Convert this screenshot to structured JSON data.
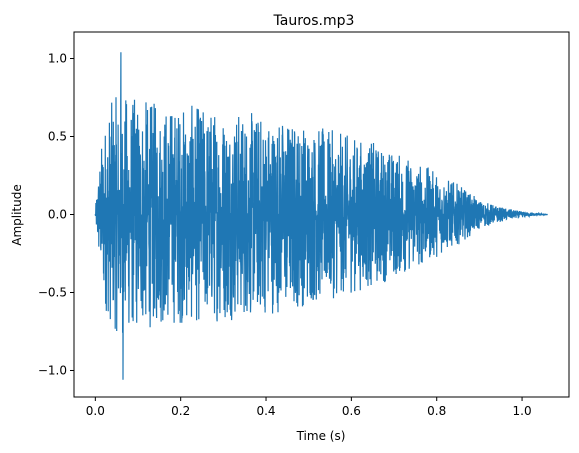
{
  "chart_data": {
    "type": "line",
    "title": "Tauros.mp3",
    "xlabel": "Time (s)",
    "ylabel": "Amplitude",
    "xlim": [
      -0.05,
      1.11
    ],
    "ylim": [
      -1.17,
      1.17
    ],
    "xticks": [
      0.0,
      0.2,
      0.4,
      0.6,
      0.8,
      1.0
    ],
    "yticks": [
      -1.0,
      -0.5,
      0.0,
      0.5,
      1.0
    ],
    "xtick_labels": [
      "0.0",
      "0.2",
      "0.4",
      "0.6",
      "0.8",
      "1.0"
    ],
    "ytick_labels": [
      "−1.0",
      "−0.5",
      "0.0",
      "0.5",
      "1.0"
    ],
    "grid": false,
    "legend": "none",
    "color": "#1f77b4",
    "series": [
      {
        "x_range": [
          0.0,
          1.06
        ],
        "envelope": [
          {
            "x": 0.0,
            "amp": 0.03
          },
          {
            "x": 0.005,
            "amp": 0.3
          },
          {
            "x": 0.02,
            "amp": 0.75
          },
          {
            "x": 0.04,
            "amp": 0.95
          },
          {
            "x": 0.06,
            "amp": 1.0
          },
          {
            "x": 0.15,
            "amp": 0.92
          },
          {
            "x": 0.3,
            "amp": 0.88
          },
          {
            "x": 0.45,
            "amp": 0.8
          },
          {
            "x": 0.55,
            "amp": 0.7
          },
          {
            "x": 0.65,
            "amp": 0.6
          },
          {
            "x": 0.75,
            "amp": 0.45
          },
          {
            "x": 0.85,
            "amp": 0.25
          },
          {
            "x": 0.9,
            "amp": 0.12
          },
          {
            "x": 0.95,
            "amp": 0.06
          },
          {
            "x": 1.0,
            "amp": 0.025
          },
          {
            "x": 1.06,
            "amp": 0.0
          }
        ],
        "peak_max": 1.04,
        "peak_min": -1.06
      }
    ]
  }
}
